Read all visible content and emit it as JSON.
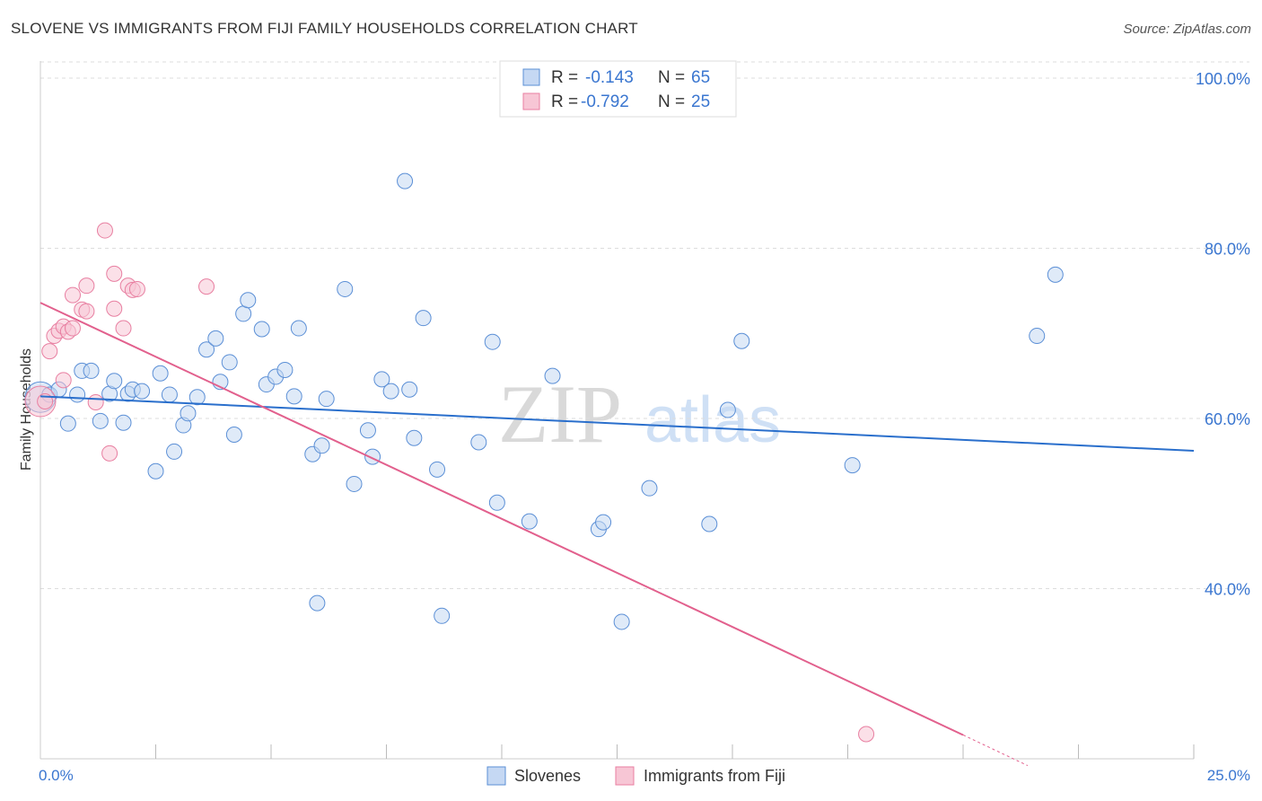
{
  "title": "SLOVENE VS IMMIGRANTS FROM FIJI FAMILY HOUSEHOLDS CORRELATION CHART",
  "source": "Source: ZipAtlas.com",
  "watermark": {
    "zip": "ZIP",
    "atlas": "atlas"
  },
  "colors": {
    "blue": "#5b8fd6",
    "blue_fill": "#c5d8f3",
    "blue_line": "#2a6fcc",
    "pink": "#e87fa1",
    "pink_fill": "#f7c6d5",
    "pink_line": "#e2608d",
    "axis_text": "#3a76d0",
    "grid": "#dddddd"
  },
  "legend_box": {
    "rows": [
      {
        "r_label": "R =",
        "r_value": "-0.143",
        "n_label": "N =",
        "n_value": "65"
      },
      {
        "r_label": "R =",
        "r_value": "-0.792",
        "n_label": "N =",
        "n_value": "25"
      }
    ]
  },
  "chart_data": {
    "type": "scatter",
    "ylabel": "Family Households",
    "xlabel": "",
    "xlim": [
      0.0,
      25.0
    ],
    "ylim": [
      20.0,
      102.0
    ],
    "x_tick_labels": [
      "0.0%",
      "25.0%"
    ],
    "y_ticks": [
      40,
      60,
      80,
      100
    ],
    "y_tick_labels": [
      "40.0%",
      "60.0%",
      "80.0%",
      "100.0%"
    ],
    "legend": [
      "Slovenes",
      "Immigrants from Fiji"
    ],
    "series": [
      {
        "name": "Slovenes",
        "points": [
          [
            0.2,
            62.8
          ],
          [
            0.4,
            63.4
          ],
          [
            0.6,
            59.4
          ],
          [
            0.8,
            62.8
          ],
          [
            0.9,
            65.6
          ],
          [
            1.1,
            65.6
          ],
          [
            1.3,
            59.7
          ],
          [
            1.5,
            62.9
          ],
          [
            1.6,
            64.4
          ],
          [
            1.8,
            59.5
          ],
          [
            1.9,
            62.9
          ],
          [
            2.0,
            63.4
          ],
          [
            2.2,
            63.2
          ],
          [
            2.5,
            53.8
          ],
          [
            2.6,
            65.3
          ],
          [
            2.8,
            62.8
          ],
          [
            2.9,
            56.1
          ],
          [
            3.1,
            59.2
          ],
          [
            3.2,
            60.6
          ],
          [
            3.4,
            62.5
          ],
          [
            3.6,
            68.1
          ],
          [
            3.8,
            69.4
          ],
          [
            3.9,
            64.3
          ],
          [
            4.1,
            66.6
          ],
          [
            4.2,
            58.1
          ],
          [
            4.4,
            72.3
          ],
          [
            4.5,
            73.9
          ],
          [
            4.8,
            70.5
          ],
          [
            4.9,
            64.0
          ],
          [
            5.1,
            64.9
          ],
          [
            5.3,
            65.7
          ],
          [
            5.5,
            62.6
          ],
          [
            5.6,
            70.6
          ],
          [
            5.9,
            55.8
          ],
          [
            6.0,
            38.3
          ],
          [
            6.1,
            56.8
          ],
          [
            6.2,
            62.3
          ],
          [
            6.6,
            75.2
          ],
          [
            6.8,
            52.3
          ],
          [
            7.1,
            58.6
          ],
          [
            7.2,
            55.5
          ],
          [
            7.4,
            64.6
          ],
          [
            7.6,
            63.2
          ],
          [
            7.9,
            87.9
          ],
          [
            8.0,
            63.4
          ],
          [
            8.1,
            57.7
          ],
          [
            8.3,
            71.8
          ],
          [
            8.6,
            54.0
          ],
          [
            8.7,
            36.8
          ],
          [
            9.5,
            57.2
          ],
          [
            9.8,
            69.0
          ],
          [
            9.9,
            50.1
          ],
          [
            10.6,
            47.9
          ],
          [
            11.1,
            65.0
          ],
          [
            12.1,
            47.0
          ],
          [
            12.2,
            47.8
          ],
          [
            12.6,
            36.1
          ],
          [
            13.2,
            51.8
          ],
          [
            14.5,
            47.6
          ],
          [
            14.9,
            61.0
          ],
          [
            15.2,
            69.1
          ],
          [
            17.6,
            54.5
          ],
          [
            21.6,
            69.7
          ],
          [
            22.0,
            76.9
          ]
        ],
        "big_point": [
          0.0,
          62.5
        ],
        "trend": {
          "x": [
            0.0,
            25.0
          ],
          "y": [
            62.6,
            56.2
          ]
        }
      },
      {
        "name": "Immigrants from Fiji",
        "points": [
          [
            0.1,
            62.0
          ],
          [
            0.2,
            67.9
          ],
          [
            0.3,
            69.7
          ],
          [
            0.4,
            70.3
          ],
          [
            0.5,
            70.8
          ],
          [
            0.5,
            64.5
          ],
          [
            0.6,
            70.2
          ],
          [
            0.7,
            70.6
          ],
          [
            0.7,
            74.5
          ],
          [
            0.9,
            72.8
          ],
          [
            1.0,
            72.6
          ],
          [
            1.0,
            75.6
          ],
          [
            1.2,
            61.9
          ],
          [
            1.4,
            82.1
          ],
          [
            1.5,
            55.9
          ],
          [
            1.6,
            72.9
          ],
          [
            1.6,
            77.0
          ],
          [
            1.8,
            70.6
          ],
          [
            1.9,
            75.6
          ],
          [
            2.0,
            75.1
          ],
          [
            2.1,
            75.2
          ],
          [
            3.6,
            75.5
          ],
          [
            17.9,
            22.9
          ]
        ],
        "big_point": [
          0.0,
          62.0
        ],
        "trend": {
          "x": [
            0.0,
            20.0
          ],
          "y": [
            73.6,
            22.8
          ]
        },
        "trend_dashed": {
          "x": [
            20.0,
            21.4
          ],
          "y": [
            22.8,
            19.2
          ]
        }
      }
    ]
  }
}
